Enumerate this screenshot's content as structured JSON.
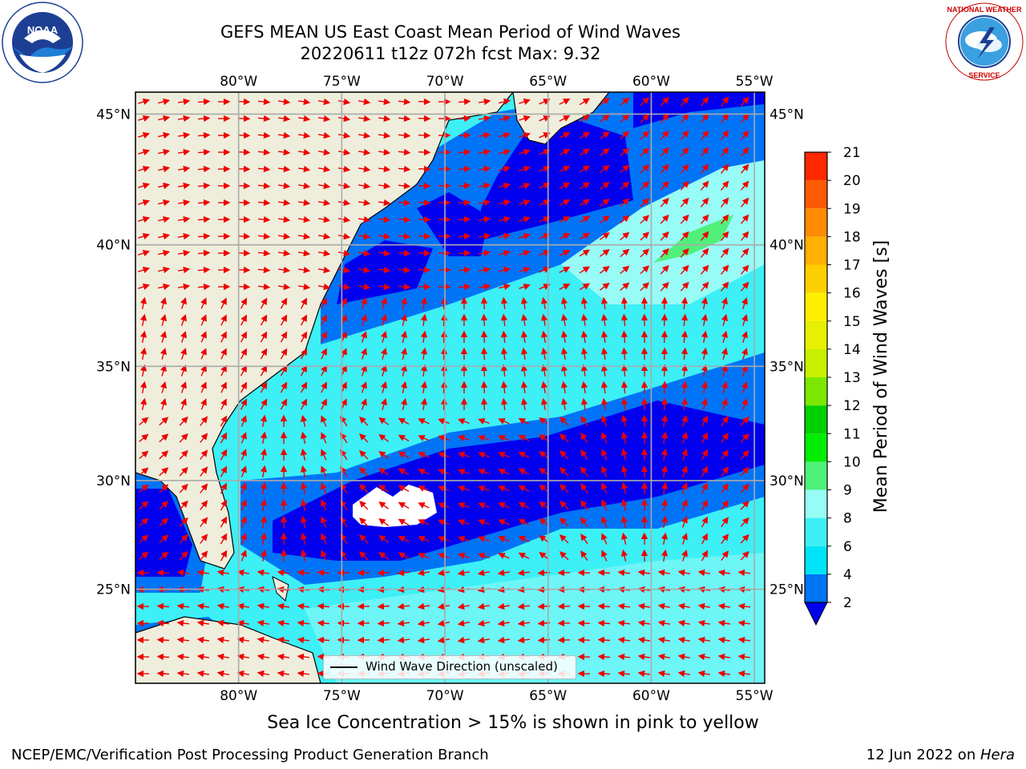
{
  "title_line1": "GEFS MEAN US East Coast Mean Period of Wind Waves",
  "title_line2": "20220611 t12z 072h fcst   Max: 9.32",
  "logos": {
    "left": "NOAA",
    "right": "NATIONAL WEATHER SERVICE"
  },
  "map": {
    "lon_ticks": [
      "80°W",
      "75°W",
      "70°W",
      "65°W",
      "60°W",
      "55°W"
    ],
    "lat_ticks": [
      "45°N",
      "40°N",
      "35°N",
      "30°N",
      "25°N"
    ],
    "lon_values": [
      -80,
      -75,
      -70,
      -65,
      -60,
      -55
    ],
    "lat_values": [
      45,
      40,
      35,
      30,
      25
    ],
    "lon_range": [
      -85,
      -54.5
    ],
    "lat_range": [
      20.5,
      45.8
    ],
    "vector_legend": "Wind Wave Direction (unscaled)",
    "colors": {
      "land": "#efeedc",
      "ocean_low": "#0000ee",
      "coast": "#000000",
      "arrow": "#ee0000",
      "grid": "#aaaaaa"
    }
  },
  "colorbar": {
    "label": "Mean Period of Wind Waves [s]",
    "tick_labels": [
      "2",
      "4",
      "6",
      "8",
      "9",
      "10",
      "11",
      "12",
      "13",
      "14",
      "15",
      "16",
      "17",
      "18",
      "19",
      "20",
      "21"
    ],
    "levels": [
      2,
      4,
      6,
      8,
      9,
      10,
      11,
      12,
      13,
      14,
      15,
      16,
      17,
      18,
      19,
      20,
      21
    ],
    "colors": [
      "#0074f6",
      "#00e4f6",
      "#3cf0f6",
      "#97fbf6",
      "#50f07a",
      "#00ee00",
      "#00d000",
      "#7ce800",
      "#c8f000",
      "#e6f000",
      "#fff000",
      "#ffd000",
      "#ffb000",
      "#ff8c00",
      "#ff5a00",
      "#ff2800",
      "#ff0000"
    ],
    "under_color": "#0000ee"
  },
  "caption": "Sea Ice Concentration > 15% is shown in pink to yellow",
  "footer_left": "NCEP/EMC/Verification Post Processing Product Generation Branch",
  "footer_right_date": "12 Jun 2022 on ",
  "footer_right_host": "Hera"
}
